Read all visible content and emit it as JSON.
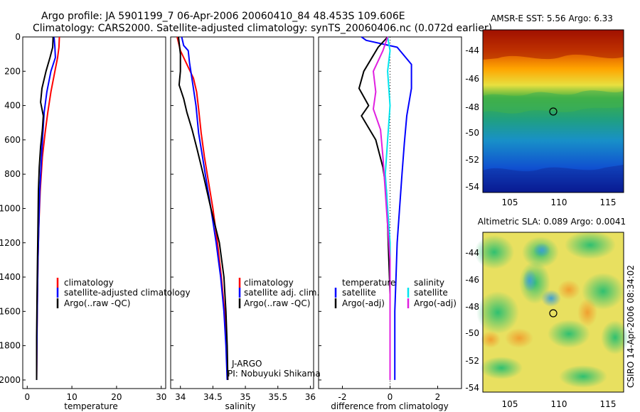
{
  "header": {
    "line1": "Argo profile: JA 5901199_7 06-Apr-2006 20060410_84 48.453S 109.606E",
    "line2": "Climatology: CARS2000. Satellite-adjusted climatology: synTS_20060406.nc (0.072d earlier)"
  },
  "colors": {
    "climatology": "#ff0000",
    "satellite": "#0000ff",
    "argo": "#000000",
    "salinity_satellite": "#00e5ee",
    "salinity_argo": "#e020e0",
    "zero_line": "#000000"
  },
  "chart_data": [
    {
      "type": "line",
      "name": "temperature",
      "xlabel": "temperature",
      "ylabel": "",
      "xlim": [
        -1,
        31
      ],
      "ylim": [
        2050,
        0
      ],
      "xticks": [
        0,
        10,
        20,
        30
      ],
      "yticks": [
        0,
        200,
        400,
        600,
        800,
        1000,
        1200,
        1400,
        1600,
        1800,
        2000
      ],
      "series": [
        {
          "name": "climatology",
          "key": "climatology",
          "points": [
            [
              7.2,
              0
            ],
            [
              7.1,
              60
            ],
            [
              6.8,
              120
            ],
            [
              6.2,
              200
            ],
            [
              5.3,
              320
            ],
            [
              4.6,
              440
            ],
            [
              4.0,
              560
            ],
            [
              3.4,
              700
            ],
            [
              2.9,
              900
            ],
            [
              2.6,
              1100
            ],
            [
              2.4,
              1300
            ],
            [
              2.3,
              1500
            ],
            [
              2.2,
              1700
            ],
            [
              2.1,
              2000
            ]
          ]
        },
        {
          "name": "satellite-adjusted climatology",
          "key": "satellite",
          "points": [
            [
              6.0,
              0
            ],
            [
              6.2,
              60
            ],
            [
              6.3,
              120
            ],
            [
              5.3,
              200
            ],
            [
              4.4,
              320
            ],
            [
              3.8,
              440
            ],
            [
              3.5,
              560
            ],
            [
              3.2,
              700
            ],
            [
              2.8,
              900
            ],
            [
              2.6,
              1100
            ],
            [
              2.4,
              1300
            ],
            [
              2.3,
              1500
            ],
            [
              2.2,
              1700
            ],
            [
              2.1,
              2000
            ]
          ]
        },
        {
          "name": "Argo(..raw -QC)",
          "key": "argo",
          "points": [
            [
              5.8,
              0
            ],
            [
              5.7,
              60
            ],
            [
              5.1,
              120
            ],
            [
              4.2,
              200
            ],
            [
              3.3,
              300
            ],
            [
              3.0,
              380
            ],
            [
              3.6,
              460
            ],
            [
              3.4,
              540
            ],
            [
              3.0,
              640
            ],
            [
              2.7,
              760
            ],
            [
              2.5,
              900
            ],
            [
              2.4,
              1100
            ],
            [
              2.3,
              1300
            ],
            [
              2.2,
              1500
            ],
            [
              2.1,
              1750
            ],
            [
              2.1,
              2000
            ]
          ]
        }
      ],
      "legend": {
        "location": "lower-left",
        "entries": [
          "climatology",
          "satellite-adjusted climatology",
          "Argo(..raw -QC)"
        ]
      }
    },
    {
      "type": "line",
      "name": "salinity",
      "xlabel": "salinity",
      "ylabel": "",
      "xlim": [
        33.85,
        36.05
      ],
      "ylim": [
        2050,
        0
      ],
      "xticks": [
        "34",
        "34.5",
        "35",
        "35.5",
        "36"
      ],
      "series": [
        {
          "name": "climatology",
          "key": "climatology",
          "points": [
            [
              33.95,
              0
            ],
            [
              34.0,
              80
            ],
            [
              34.1,
              160
            ],
            [
              34.2,
              240
            ],
            [
              34.25,
              320
            ],
            [
              34.28,
              420
            ],
            [
              34.32,
              560
            ],
            [
              34.37,
              700
            ],
            [
              34.43,
              840
            ],
            [
              34.5,
              1000
            ],
            [
              34.57,
              1200
            ],
            [
              34.63,
              1400
            ],
            [
              34.68,
              1600
            ],
            [
              34.71,
              1800
            ],
            [
              34.73,
              2000
            ]
          ]
        },
        {
          "name": "satellite adj. clim.",
          "key": "satellite",
          "points": [
            [
              34.02,
              0
            ],
            [
              34.05,
              50
            ],
            [
              34.12,
              80
            ],
            [
              34.14,
              150
            ],
            [
              34.2,
              300
            ],
            [
              34.24,
              400
            ],
            [
              34.28,
              560
            ],
            [
              34.34,
              700
            ],
            [
              34.4,
              840
            ],
            [
              34.47,
              1000
            ],
            [
              34.55,
              1200
            ],
            [
              34.62,
              1400
            ],
            [
              34.67,
              1600
            ],
            [
              34.7,
              1800
            ],
            [
              34.72,
              2000
            ]
          ]
        },
        {
          "name": "Argo(..raw -QC)",
          "key": "argo",
          "points": [
            [
              33.97,
              0
            ],
            [
              34.0,
              100
            ],
            [
              34.0,
              200
            ],
            [
              33.98,
              280
            ],
            [
              34.05,
              360
            ],
            [
              34.1,
              440
            ],
            [
              34.18,
              540
            ],
            [
              34.26,
              660
            ],
            [
              34.35,
              800
            ],
            [
              34.47,
              1000
            ],
            [
              34.6,
              1200
            ],
            [
              34.67,
              1400
            ],
            [
              34.7,
              1600
            ],
            [
              34.72,
              1800
            ],
            [
              34.73,
              2000
            ]
          ]
        }
      ],
      "legend": {
        "location": "lower-right",
        "entries": [
          "climatology",
          "satellite adj. clim.",
          "Argo(..raw -QC)"
        ]
      },
      "annotations": [
        "J-ARGO",
        "PI: Nobuyuki Shikama"
      ]
    },
    {
      "type": "line",
      "name": "difference",
      "xlabel": "difference from climatology",
      "ylabel": "",
      "xlim": [
        -3,
        3
      ],
      "ylim": [
        2050,
        0
      ],
      "xticks": [
        -2,
        0,
        2
      ],
      "series": [
        {
          "name": "temperature satellite",
          "key": "satellite",
          "points": [
            [
              -1.2,
              0
            ],
            [
              -1.0,
              20
            ],
            [
              0.3,
              60
            ],
            [
              0.9,
              160
            ],
            [
              0.9,
              300
            ],
            [
              0.7,
              460
            ],
            [
              0.6,
              620
            ],
            [
              0.5,
              800
            ],
            [
              0.4,
              1000
            ],
            [
              0.3,
              1200
            ],
            [
              0.25,
              1400
            ],
            [
              0.2,
              1600
            ],
            [
              0.2,
              1800
            ],
            [
              0.2,
              2000
            ]
          ]
        },
        {
          "name": "temperature Argo(-adj)",
          "key": "argo",
          "points": [
            [
              -0.1,
              0
            ],
            [
              -0.5,
              60
            ],
            [
              -1.1,
              200
            ],
            [
              -1.3,
              300
            ],
            [
              -0.9,
              400
            ],
            [
              -1.2,
              460
            ],
            [
              -0.6,
              600
            ],
            [
              -0.3,
              760
            ],
            [
              -0.15,
              900
            ],
            [
              -0.1,
              1100
            ],
            [
              -0.05,
              1300
            ],
            [
              0,
              1500
            ],
            [
              0,
              1700
            ],
            [
              0,
              2000
            ]
          ]
        },
        {
          "name": "salinity satellite",
          "key": "salinity_satellite",
          "points": [
            [
              -0.1,
              0
            ],
            [
              0,
              80
            ],
            [
              -0.1,
              200
            ],
            [
              0,
              400
            ],
            [
              -0.1,
              600
            ],
            [
              -0.2,
              800
            ],
            [
              -0.1,
              1000
            ],
            [
              0,
              1200
            ],
            [
              0,
              1500
            ],
            [
              0,
              1800
            ],
            [
              0,
              2000
            ]
          ]
        },
        {
          "name": "salinity Argo(-adj)",
          "key": "salinity_argo",
          "points": [
            [
              -0.1,
              0
            ],
            [
              -0.3,
              80
            ],
            [
              -0.7,
              200
            ],
            [
              -0.6,
              320
            ],
            [
              -0.7,
              420
            ],
            [
              -0.4,
              540
            ],
            [
              -0.3,
              700
            ],
            [
              -0.2,
              900
            ],
            [
              -0.1,
              1100
            ],
            [
              0,
              1300
            ],
            [
              0,
              1600
            ],
            [
              0,
              2000
            ]
          ]
        }
      ],
      "legend": {
        "location": "lower",
        "temperature_header": "temperature",
        "salinity_header": "salinity",
        "entries": [
          "satellite",
          "Argo(-adj)",
          "satellite",
          "Argo(-adj)"
        ]
      }
    }
  ],
  "maps": [
    {
      "title": "AMSR-E SST: 5.56 Argo: 6.33",
      "xticks": [
        "105",
        "110",
        "115"
      ],
      "yticks": [
        "-44",
        "-46",
        "-48",
        "-50",
        "-52",
        "-54"
      ],
      "colorscheme": "sst"
    },
    {
      "title": "Altimetric SLA: 0.089 Argo: 0.0041",
      "xticks": [
        "105",
        "110",
        "115"
      ],
      "yticks": [
        "-44",
        "-46",
        "-48",
        "-50",
        "-52",
        "-54"
      ],
      "colorscheme": "sla"
    }
  ],
  "credit": "CSIRO 14-Apr-2006 08:34:02"
}
